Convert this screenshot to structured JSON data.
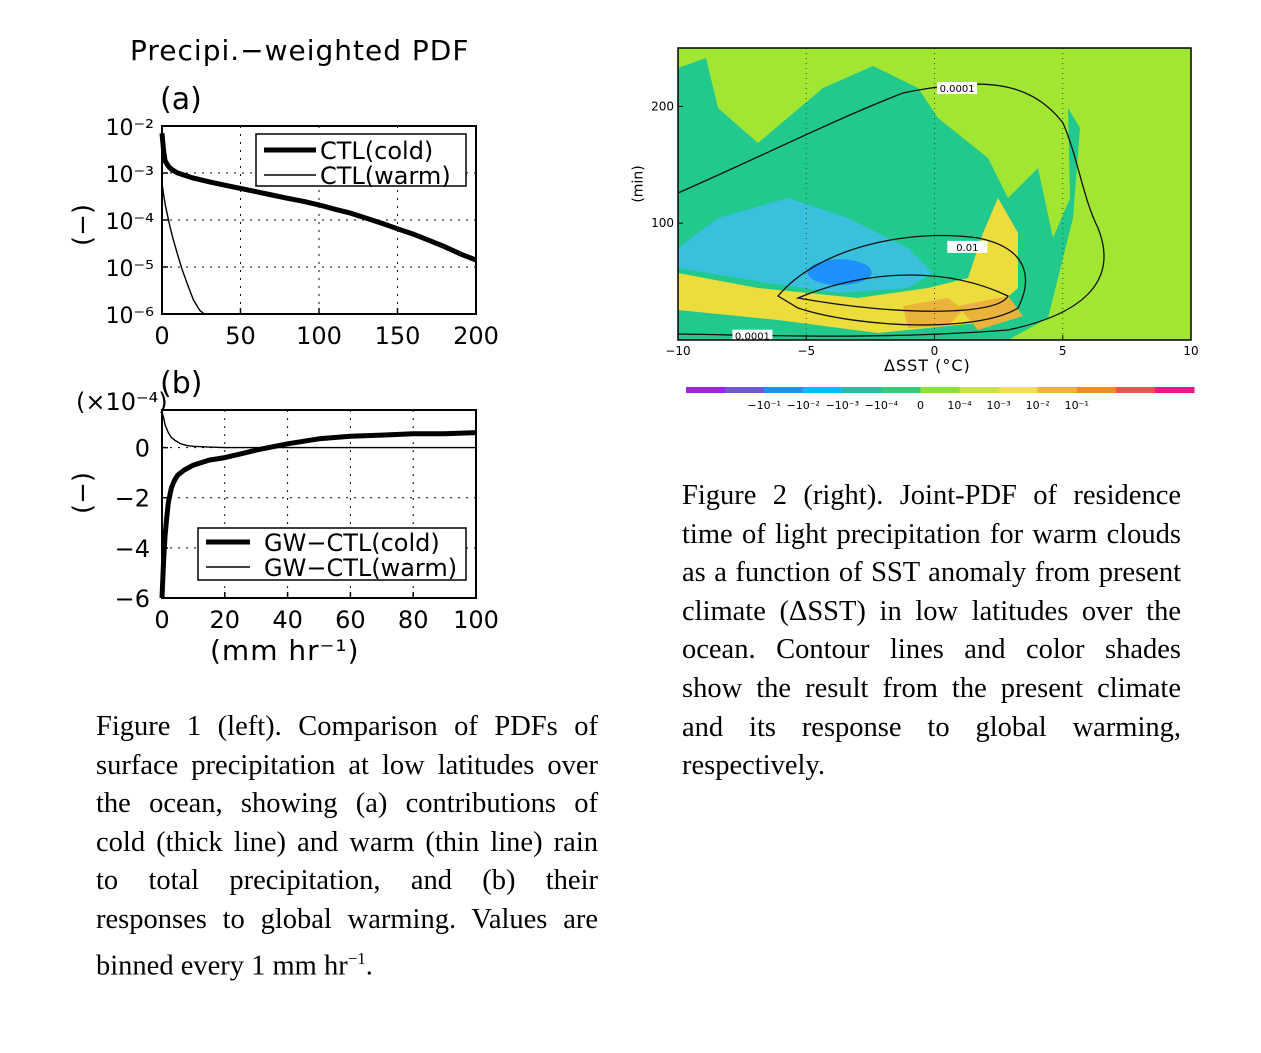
{
  "figure1": {
    "title": "Precipi.−weighted PDF",
    "panel_a_label": "(a)",
    "panel_b_label": "(b)",
    "ylabel_a": "(−)",
    "ylabel_b": "(−)",
    "scale_b": "(×10⁻⁴)",
    "xlabel_b": "(mm hr⁻¹)"
  },
  "figure2": {
    "xlabel": "ΔSST (°C)",
    "ylabel": "(min)",
    "contour_labels": [
      "0.0001",
      "0.01",
      "0.0001"
    ],
    "colorbar_labels": [
      "−10⁻¹",
      "−10⁻²",
      "−10⁻³",
      "−10⁻⁴",
      "0",
      "10⁻⁴",
      "10⁻³",
      "10⁻²",
      "10⁻¹"
    ],
    "colorbar_colors": [
      "#a020f0",
      "#6a5acd",
      "#1e90ff",
      "#00bfff",
      "#20c0a0",
      "#3cc878",
      "#8ce03c",
      "#c8e632",
      "#f0e040",
      "#f0b428",
      "#f08c28",
      "#f05050",
      "#f0148c"
    ],
    "field_colors": {
      "green": "#a0e632",
      "teal": "#22c98c",
      "cyan": "#38c0dc",
      "blue": "#1e90ff",
      "yellow": "#ecdc3c",
      "orange": "#eab43c"
    }
  },
  "captions": {
    "fig1": "Figure 1 (left). Comparison of PDFs of surface precipitation at low latitudes over the ocean, showing (a) contributions of cold (thick line) and warm (thin line) rain to total precipitation, and (b) their responses to global warming. Values are binned every 1 mm hr",
    "fig1_sup": "−1",
    "fig1_end": ".",
    "fig2": "Figure 2 (right). Joint-PDF of residence time of light precipitation for warm clouds as a function of SST anomaly from present climate (ΔSST) in low latitudes over the ocean. Contour lines and color shades show the result from the present climate and its response to global warming, respectively."
  },
  "chart_data": [
    {
      "type": "line",
      "panel": "(a)",
      "xlim": [
        0,
        200
      ],
      "ylim": [
        1e-06,
        0.01
      ],
      "yscale": "log",
      "grid": true,
      "legend_placement": "top-right",
      "xticks": [
        0,
        50,
        100,
        150,
        200
      ],
      "xtick_labels": [
        "0",
        "50",
        "100",
        "150",
        "200"
      ],
      "yticks": [
        0.01,
        0.001,
        0.0001,
        1e-05,
        1e-06
      ],
      "ytick_labels": [
        "10⁻²",
        "10⁻³",
        "10⁻⁴",
        "10⁻⁵",
        "10⁻⁶"
      ],
      "series": [
        {
          "name": "CTL(cold)",
          "style": "thick",
          "x": [
            0,
            1,
            2,
            4,
            6,
            10,
            15,
            20,
            30,
            40,
            50,
            60,
            70,
            80,
            90,
            100,
            110,
            120,
            130,
            140,
            150,
            160,
            170,
            180,
            190,
            200
          ],
          "y": [
            0.007,
            0.003,
            0.0018,
            0.0014,
            0.0012,
            0.001,
            0.00088,
            0.00078,
            0.00065,
            0.00055,
            0.00047,
            0.0004,
            0.00034,
            0.00029,
            0.00025,
            0.00021,
            0.00017,
            0.00014,
            0.00011,
            8.5e-05,
            6.5e-05,
            5e-05,
            3.7e-05,
            2.7e-05,
            1.9e-05,
            1.4e-05
          ]
        },
        {
          "name": "CTL(warm)",
          "style": "thin",
          "x": [
            0,
            1,
            2,
            3,
            5,
            7,
            10,
            13,
            16,
            20,
            24,
            27
          ],
          "y": [
            0.0006,
            0.00035,
            0.00022,
            0.00015,
            7.5e-05,
            4e-05,
            1.8e-05,
            8.5e-06,
            4.5e-06,
            2e-06,
            1.2e-06,
            1e-06
          ]
        }
      ]
    },
    {
      "type": "line",
      "panel": "(b)",
      "xlim": [
        0,
        100
      ],
      "ylim": [
        -6,
        1.5
      ],
      "yscale_factor": "(×10⁻⁴)",
      "grid": true,
      "legend_placement": "bottom-right",
      "xticks": [
        0,
        20,
        40,
        60,
        80,
        100
      ],
      "xtick_labels": [
        "0",
        "20",
        "40",
        "60",
        "80",
        "100"
      ],
      "yticks": [
        0,
        -2,
        -4,
        -6
      ],
      "ytick_labels": [
        "0",
        "−2",
        "−4",
        "−6"
      ],
      "xlabel": "(mm hr⁻¹)",
      "series": [
        {
          "name": "GW−CTL(cold)",
          "style": "thick",
          "x": [
            0,
            0.5,
            1,
            1.5,
            2,
            3,
            4,
            5,
            7,
            10,
            15,
            20,
            25,
            30,
            40,
            50,
            60,
            70,
            80,
            90,
            100
          ],
          "y": [
            -6.2,
            -4.5,
            -3.5,
            -2.8,
            -2.2,
            -1.6,
            -1.3,
            -1.1,
            -0.9,
            -0.7,
            -0.5,
            -0.4,
            -0.25,
            -0.1,
            0.15,
            0.35,
            0.45,
            0.5,
            0.55,
            0.55,
            0.6
          ]
        },
        {
          "name": "GW−CTL(warm)",
          "style": "thin",
          "x": [
            0,
            0.5,
            1,
            2,
            3,
            4,
            6,
            8,
            10,
            15,
            20,
            30,
            50,
            100
          ],
          "y": [
            1.4,
            1.2,
            0.9,
            0.6,
            0.4,
            0.3,
            0.15,
            0.08,
            0.05,
            0.02,
            0.0,
            0.0,
            0.0,
            0.0
          ]
        }
      ]
    },
    {
      "type": "heatmap",
      "xlim": [
        -10,
        10
      ],
      "ylim": [
        0,
        250
      ],
      "xticks": [
        -10,
        -5,
        0,
        5,
        10
      ],
      "xtick_labels": [
        "−10",
        "−5",
        "0",
        "5",
        "10"
      ],
      "yticks": [
        100,
        200
      ],
      "ytick_labels": [
        "100",
        "200"
      ],
      "xlabel": "ΔSST (°C)",
      "ylabel": "(min)",
      "contour_levels": [
        "0.0001",
        "0.01"
      ]
    }
  ]
}
